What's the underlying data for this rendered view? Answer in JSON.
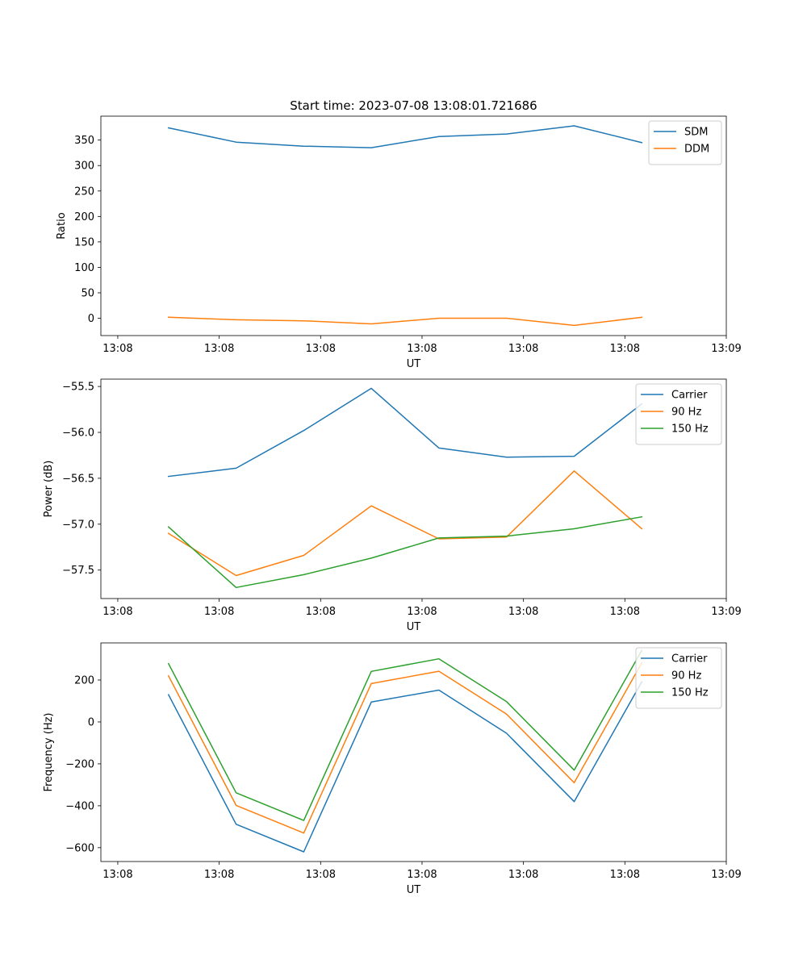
{
  "figure_title": "Start time: 2023-07-08 13:08:01.721686",
  "chart_data": [
    {
      "type": "line",
      "title": "Start time: 2023-07-08 13:08:01.721686",
      "xlabel": "UT",
      "ylabel": "Ratio",
      "x": [
        0.75,
        1.75,
        2.75,
        3.75,
        4.75,
        5.75,
        6.75,
        7.75
      ],
      "xlim": [
        -0.25,
        9.0
      ],
      "xticks": [
        0,
        1.5,
        3,
        4.5,
        6,
        7.5,
        9
      ],
      "xtick_labels": [
        "13:08",
        "13:08",
        "13:08",
        "13:08",
        "13:08",
        "13:08",
        "13:09"
      ],
      "ylim": [
        -34,
        397
      ],
      "yticks": [
        0,
        50,
        100,
        150,
        200,
        250,
        300,
        350
      ],
      "ytick_labels": [
        "0",
        "50",
        "100",
        "150",
        "200",
        "250",
        "300",
        "350"
      ],
      "legend_position": "top-right",
      "series": [
        {
          "name": "SDM",
          "color": "#1f77b4",
          "values": [
            374,
            346,
            338,
            335,
            357,
            362,
            378,
            345
          ]
        },
        {
          "name": "DDM",
          "color": "#ff7f0e",
          "values": [
            2,
            -3,
            -5,
            -11,
            0,
            0,
            -14,
            2
          ]
        }
      ]
    },
    {
      "type": "line",
      "xlabel": "UT",
      "ylabel": "Power (dB)",
      "x": [
        0.75,
        1.75,
        2.75,
        3.75,
        4.75,
        5.75,
        6.75,
        7.75
      ],
      "xlim": [
        -0.25,
        9.0
      ],
      "xticks": [
        0,
        1.5,
        3,
        4.5,
        6,
        7.5,
        9
      ],
      "xtick_labels": [
        "13:08",
        "13:08",
        "13:08",
        "13:08",
        "13:08",
        "13:08",
        "13:09"
      ],
      "ylim": [
        -57.81,
        -55.42
      ],
      "yticks": [
        -57.5,
        -57.0,
        -56.5,
        -56.0,
        -55.5
      ],
      "ytick_labels": [
        "−57.5",
        "−57.0",
        "−56.5",
        "−56.0",
        "−55.5"
      ],
      "legend_position": "top-right",
      "series": [
        {
          "name": "Carrier",
          "color": "#1f77b4",
          "values": [
            -56.48,
            -56.39,
            -55.98,
            -55.52,
            -56.17,
            -56.27,
            -56.26,
            -55.69
          ]
        },
        {
          "name": "90 Hz",
          "color": "#ff7f0e",
          "values": [
            -57.1,
            -57.56,
            -57.34,
            -56.8,
            -57.16,
            -57.14,
            -56.42,
            -57.05
          ]
        },
        {
          "name": "150 Hz",
          "color": "#2ca02c",
          "values": [
            -57.03,
            -57.69,
            -57.55,
            -57.37,
            -57.15,
            -57.13,
            -57.05,
            -56.92
          ]
        }
      ]
    },
    {
      "type": "line",
      "xlabel": "UT",
      "ylabel": "Frequency (Hz)",
      "x": [
        0.75,
        1.75,
        2.75,
        3.75,
        4.75,
        5.75,
        6.75,
        7.75
      ],
      "xlim": [
        -0.25,
        9.0
      ],
      "xticks": [
        0,
        1.5,
        3,
        4.5,
        6,
        7.5,
        9
      ],
      "xtick_labels": [
        "13:08",
        "13:08",
        "13:08",
        "13:08",
        "13:08",
        "13:08",
        "13:09"
      ],
      "ylim": [
        -666,
        377
      ],
      "yticks": [
        -600,
        -400,
        -200,
        0,
        200
      ],
      "ytick_labels": [
        "−600",
        "−400",
        "−200",
        "0",
        "200"
      ],
      "legend_position": "top-right",
      "series": [
        {
          "name": "Carrier",
          "color": "#1f77b4",
          "values": [
            130,
            -488,
            -620,
            95,
            152,
            -54,
            -380,
            192
          ]
        },
        {
          "name": "90 Hz",
          "color": "#ff7f0e",
          "values": [
            220,
            -398,
            -530,
            183,
            242,
            37,
            -290,
            282
          ]
        },
        {
          "name": "150 Hz",
          "color": "#2ca02c",
          "values": [
            278,
            -338,
            -470,
            241,
            301,
            97,
            -230,
            342
          ]
        }
      ]
    }
  ]
}
